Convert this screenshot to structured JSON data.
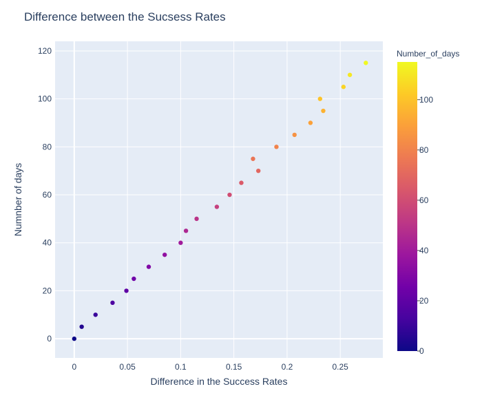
{
  "chart_data": {
    "type": "scatter",
    "title": "Difference between the Sucsess Rates",
    "xlabel": "Difference in the Success Rates",
    "ylabel": "Numnber of days",
    "xlim": [
      -0.018,
      0.29
    ],
    "ylim": [
      -8,
      124
    ],
    "x_ticks": [
      0,
      0.05,
      0.1,
      0.15,
      0.2,
      0.25
    ],
    "x_tick_labels": [
      "0",
      "0.05",
      "0.1",
      "0.15",
      "0.2",
      "0.25"
    ],
    "y_ticks": [
      0,
      20,
      40,
      60,
      80,
      100,
      120
    ],
    "y_tick_labels": [
      "0",
      "20",
      "40",
      "60",
      "80",
      "100",
      "120"
    ],
    "grid": true,
    "colorbar": {
      "title": "Number_of_days",
      "range": [
        0,
        115
      ],
      "ticks": [
        0,
        20,
        40,
        60,
        80,
        100
      ],
      "tick_labels": [
        "0",
        "20",
        "40",
        "60",
        "80",
        "100"
      ],
      "colorscale": [
        "#0d0887",
        "#46039f",
        "#7201a8",
        "#9c179e",
        "#bd3786",
        "#d8576b",
        "#ed7953",
        "#fb9f3a",
        "#fdca26",
        "#f0f921"
      ]
    },
    "series": [
      {
        "x": [
          0,
          0.007,
          0.02,
          0.036,
          0.049,
          0.056,
          0.07,
          0.085,
          0.1,
          0.105,
          0.115,
          0.134,
          0.146,
          0.157,
          0.168,
          0.173,
          0.19,
          0.207,
          0.222,
          0.231,
          0.234,
          0.253,
          0.259,
          0.274
        ],
        "y": [
          0,
          5,
          10,
          15,
          20,
          25,
          30,
          35,
          40,
          45,
          50,
          55,
          60,
          65,
          75,
          70,
          80,
          85,
          90,
          100,
          95,
          105,
          110,
          115
        ]
      }
    ]
  }
}
